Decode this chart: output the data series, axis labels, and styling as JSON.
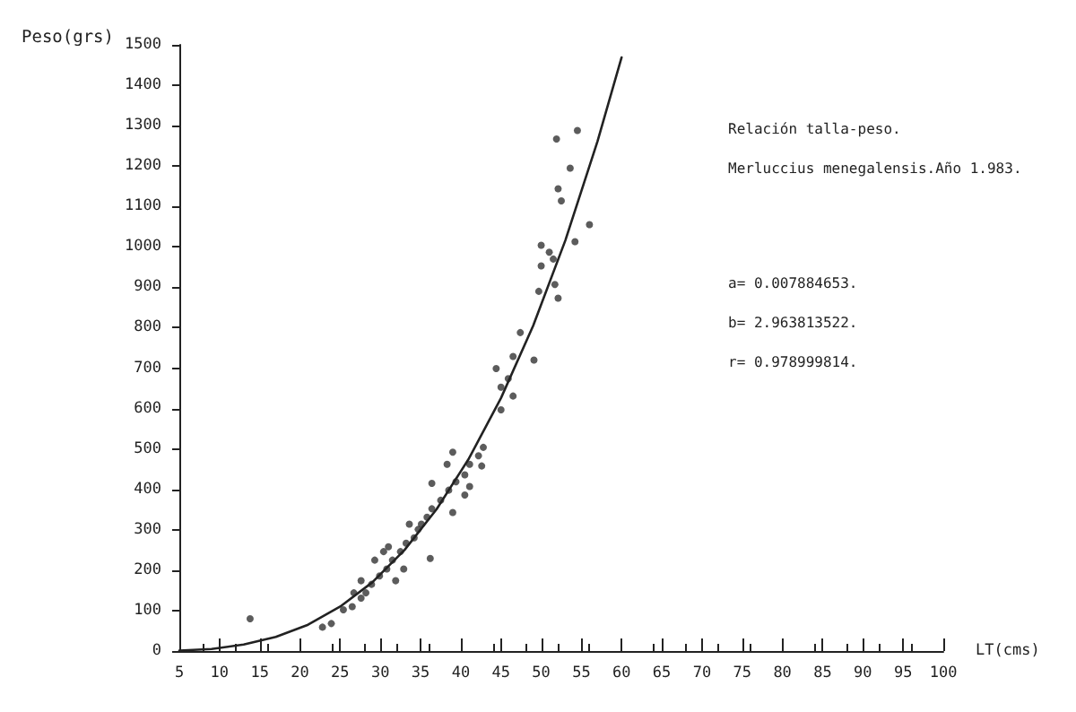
{
  "chart_data": {
    "type": "scatter",
    "xlabel": "LT(cms)",
    "ylabel": "Peso(grs)",
    "annotations": [
      "Relación talla-peso.",
      "Merluccius menegalensis.Año 1.983.",
      "a= 0.007884653.",
      "b= 2.963813522.",
      "r= 0.978999814."
    ],
    "xlim": [
      5,
      100
    ],
    "xticks": [
      5,
      10,
      15,
      20,
      25,
      30,
      35,
      40,
      45,
      50,
      55,
      60,
      65,
      70,
      75,
      80,
      85,
      90,
      95,
      100
    ],
    "ylim": [
      0,
      1500
    ],
    "yticks": [
      0,
      100,
      200,
      300,
      400,
      500,
      600,
      700,
      800,
      900,
      1000,
      1100,
      1200,
      1300,
      1400,
      1500
    ],
    "grid": false,
    "series": [
      {
        "color": "#333333",
        "marker": "circle",
        "x": [
          13.8,
          22.8,
          23.9,
          25.4,
          26.5,
          27.6,
          28.2,
          28.9,
          29.9,
          30.8,
          31.5,
          32.5,
          33.2,
          34.2,
          35.1,
          35.8,
          36.4,
          37.5,
          38.5,
          39.4,
          40.5,
          41.1,
          42.2,
          42.8,
          39,
          38.3,
          36.4,
          34.7,
          36.2,
          39,
          40.5,
          41.1,
          31,
          29.3,
          27.6,
          26.7,
          31.9,
          32.9,
          42.6,
          33.6,
          30.4,
          44.4,
          45,
          45,
          45.9,
          46.5,
          46.5,
          47.4,
          49.1,
          49.7,
          50,
          50,
          51,
          51.5,
          51.7,
          52.1,
          52.1,
          52.5,
          53.6,
          54.2,
          56,
          51.9,
          54.5
        ],
        "values": [
          80,
          59,
          68,
          102,
          110,
          131,
          144,
          165,
          186,
          203,
          225,
          246,
          267,
          280,
          314,
          331,
          352,
          373,
          398,
          419,
          436,
          462,
          483,
          504,
          492,
          462,
          415,
          301,
          229,
          343,
          386,
          407,
          258,
          225,
          174,
          144,
          174,
          203,
          458,
          314,
          246,
          699,
          653,
          597,
          674,
          631,
          729,
          788,
          720,
          890,
          1004,
          953,
          987,
          970,
          907,
          873,
          1144,
          1114,
          1195,
          1013,
          1055,
          1267,
          1288
        ]
      },
      {
        "type": "line",
        "color": "#222222",
        "marker": "none",
        "line_style": "solid",
        "x": [
          5,
          9,
          13,
          17,
          21,
          25,
          29,
          33,
          37,
          41,
          45,
          49,
          53,
          57,
          60
        ],
        "values": [
          1,
          5,
          16,
          35,
          65,
          110,
          170,
          250,
          351,
          476,
          626,
          805,
          1016,
          1261,
          1469
        ]
      }
    ]
  }
}
